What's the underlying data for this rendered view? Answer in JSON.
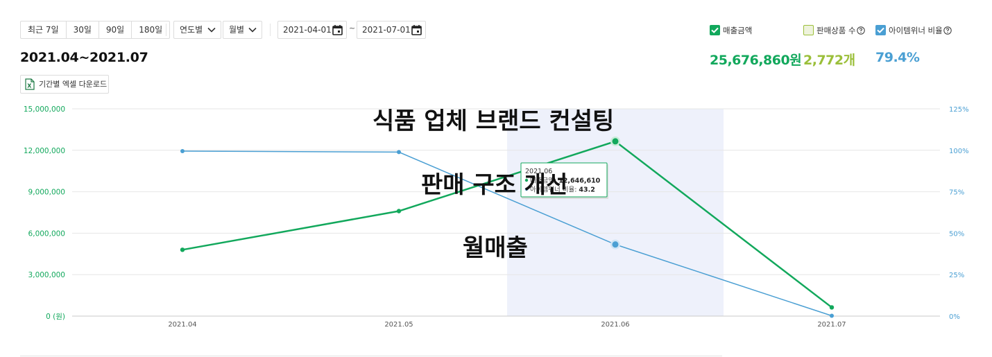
{
  "toolbar": {
    "ranges": [
      "최근 7일",
      "30일",
      "90일",
      "180일"
    ],
    "yearly_select": "연도별",
    "monthly_select": "월별",
    "start_date": "2021-04-01",
    "end_date": "2021-07-01",
    "date_separator": "~"
  },
  "legend": {
    "sales": "매출금액",
    "products": "판매상품 수",
    "winner": "아이템위너 비율"
  },
  "summary": {
    "sales": "25,676,860원",
    "products": "2,772개",
    "winner": "79.4%"
  },
  "period_title": "2021.04~2021.07",
  "excel_button": "기간별 엑셀 다운로드",
  "tooltip": {
    "title": "2021.06",
    "sales_label": "매출금액",
    "sales_value": "12,646,610",
    "winner_label": "아이템위너 비율",
    "winner_value": "43.2"
  },
  "overlay": {
    "line1": "식품 업체 브랜드 컨설팅",
    "line2": "판매 구조 개선",
    "line3": "월매출"
  },
  "colors": {
    "sales": "#12a85c",
    "products": "#9bbf3a",
    "winner": "#4a9fd3",
    "highlight": "#eef1fb"
  },
  "chart_data": {
    "type": "line",
    "categories": [
      "2021.04",
      "2021.05",
      "2021.06",
      "2021.07"
    ],
    "series": [
      {
        "name": "매출금액",
        "axis": "left",
        "values": [
          4800000,
          7600000,
          12646610,
          630000
        ]
      },
      {
        "name": "아이템위너 비율",
        "axis": "right",
        "values": [
          99.5,
          98.9,
          43.2,
          0.2
        ]
      }
    ],
    "y_left": {
      "ticks": [
        "0 (원)",
        "3,000,000",
        "6,000,000",
        "9,000,000",
        "12,000,000",
        "15,000,000"
      ],
      "ylim": [
        0,
        15000000
      ]
    },
    "y_right": {
      "ticks": [
        "0%",
        "25%",
        "50%",
        "75%",
        "100%",
        "125%"
      ],
      "ylim": [
        0,
        125
      ]
    },
    "highlighted_category": "2021.06",
    "grid": true
  }
}
